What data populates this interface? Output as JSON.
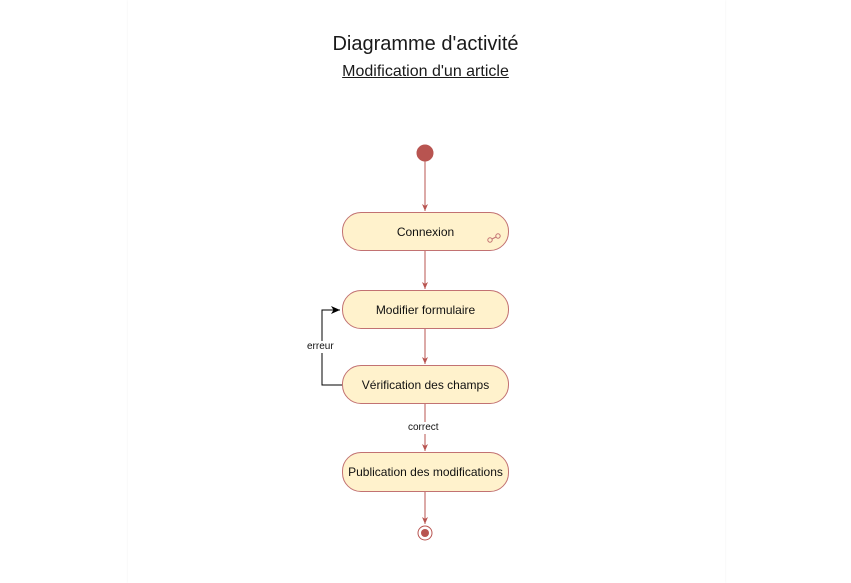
{
  "diagram": {
    "title": "Diagramme d'activité",
    "subtitle": "Modification d'un article"
  },
  "nodes": {
    "connexion": "Connexion",
    "modifier": "Modifier formulaire",
    "verification": "Vérification des champs",
    "publication": "Publication des modifications"
  },
  "edges": {
    "error_label": "erreur",
    "correct_label": "correct"
  },
  "colors": {
    "node_fill": "#fff2cc",
    "node_stroke": "#c27272",
    "flow": "#b85450",
    "loop": "#000000"
  },
  "icons": {
    "subprocess": "link-icon",
    "start": "initial-node-icon",
    "end": "final-node-icon"
  }
}
